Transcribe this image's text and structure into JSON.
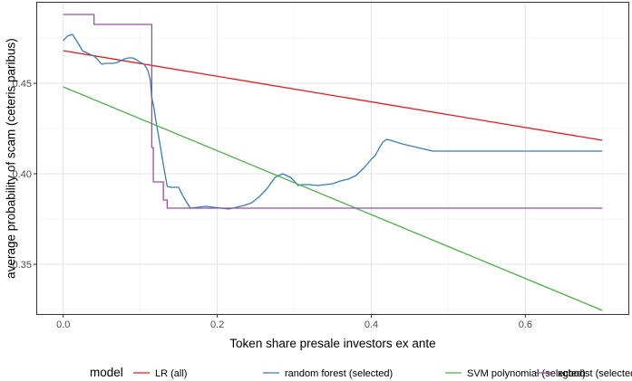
{
  "chart_data": {
    "type": "line",
    "title": "",
    "xlabel": "Token share presale investors ex ante",
    "ylabel": "average probability of scam (ceteris paribus)",
    "xlim": [
      -0.035,
      0.735
    ],
    "ylim": [
      0.322,
      0.495
    ],
    "xticks": [
      0.0,
      0.2,
      0.4,
      0.6
    ],
    "xtick_labels": [
      "0.0",
      "0.2",
      "0.4",
      "0.6"
    ],
    "yticks": [
      0.35,
      0.4,
      0.45
    ],
    "ytick_labels": [
      "0.35",
      "0.40",
      "0.45"
    ],
    "grid": true,
    "legend": {
      "title": "model",
      "position": "bottom"
    },
    "series": [
      {
        "name": "LR (all)",
        "color": "#E41A1C",
        "x": [
          0.0,
          0.7
        ],
        "y": [
          0.468,
          0.4185
        ]
      },
      {
        "name": "random forest (selected)",
        "color": "#377EB8",
        "x": [
          0.0,
          0.005,
          0.012,
          0.018,
          0.025,
          0.032,
          0.04,
          0.045,
          0.05,
          0.055,
          0.06,
          0.065,
          0.07,
          0.075,
          0.08,
          0.085,
          0.09,
          0.095,
          0.1,
          0.105,
          0.108,
          0.11,
          0.113,
          0.115,
          0.118,
          0.12,
          0.125,
          0.13,
          0.135,
          0.14,
          0.145,
          0.15,
          0.155,
          0.165,
          0.175,
          0.185,
          0.195,
          0.205,
          0.215,
          0.225,
          0.235,
          0.245,
          0.255,
          0.265,
          0.275,
          0.285,
          0.295,
          0.3,
          0.305,
          0.31,
          0.315,
          0.32,
          0.33,
          0.34,
          0.35,
          0.36,
          0.37,
          0.38,
          0.39,
          0.4,
          0.405,
          0.41,
          0.415,
          0.42,
          0.425,
          0.44,
          0.46,
          0.48,
          0.49,
          0.5,
          0.6,
          0.7
        ],
        "y": [
          0.4735,
          0.476,
          0.477,
          0.473,
          0.468,
          0.4665,
          0.465,
          0.463,
          0.4605,
          0.461,
          0.461,
          0.461,
          0.4615,
          0.4625,
          0.4635,
          0.464,
          0.464,
          0.463,
          0.4615,
          0.4605,
          0.4585,
          0.457,
          0.452,
          0.442,
          0.436,
          0.43,
          0.418,
          0.405,
          0.393,
          0.3925,
          0.3925,
          0.3925,
          0.388,
          0.381,
          0.3815,
          0.382,
          0.3815,
          0.381,
          0.3805,
          0.3815,
          0.3825,
          0.384,
          0.3875,
          0.392,
          0.398,
          0.4,
          0.398,
          0.396,
          0.3935,
          0.394,
          0.394,
          0.394,
          0.3935,
          0.394,
          0.3945,
          0.396,
          0.397,
          0.399,
          0.403,
          0.408,
          0.41,
          0.414,
          0.4175,
          0.419,
          0.4185,
          0.4165,
          0.4145,
          0.4125,
          0.4125,
          0.4125,
          0.4125,
          0.4125
        ]
      },
      {
        "name": "SVM polynomial (selected)",
        "color": "#4DAF4A",
        "x": [
          0.0,
          0.7
        ],
        "y": [
          0.448,
          0.3245
        ]
      },
      {
        "name": "xgboost (selected)",
        "color": "#984EA3",
        "x": [
          0.0,
          0.04,
          0.04,
          0.115,
          0.115,
          0.117,
          0.117,
          0.13,
          0.13,
          0.135,
          0.135,
          0.7
        ],
        "y": [
          0.488,
          0.488,
          0.4825,
          0.4825,
          0.4145,
          0.4145,
          0.3955,
          0.3955,
          0.3855,
          0.3855,
          0.381,
          0.381
        ]
      }
    ]
  }
}
